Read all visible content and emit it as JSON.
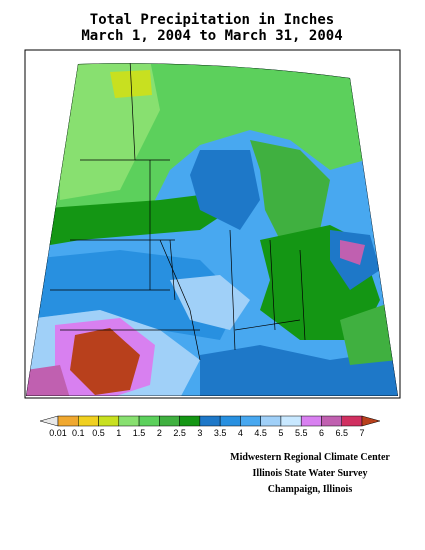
{
  "header": {
    "title": "Total Precipitation in Inches",
    "subtitle": "March 1, 2004 to March 31, 2004"
  },
  "legend": {
    "labels": [
      "0.01",
      "0.1",
      "0.5",
      "1",
      "1.5",
      "2",
      "2.5",
      "3",
      "3.5",
      "4",
      "4.5",
      "5",
      "5.5",
      "6",
      "6.5",
      "7"
    ],
    "colors": [
      "#e8e8e8",
      "#f0a830",
      "#f0d020",
      "#c8e020",
      "#88e070",
      "#5cd05c",
      "#40b040",
      "#149614",
      "#1e78c8",
      "#2890e0",
      "#48a8f0",
      "#a0d0f8",
      "#c8e8ff",
      "#d880f0",
      "#c060b0",
      "#d03060",
      "#b8401c"
    ]
  },
  "credits": [
    "Midwestern Regional Climate Center",
    "Illinois State Water Survey",
    "Champaign, Illinois"
  ]
}
